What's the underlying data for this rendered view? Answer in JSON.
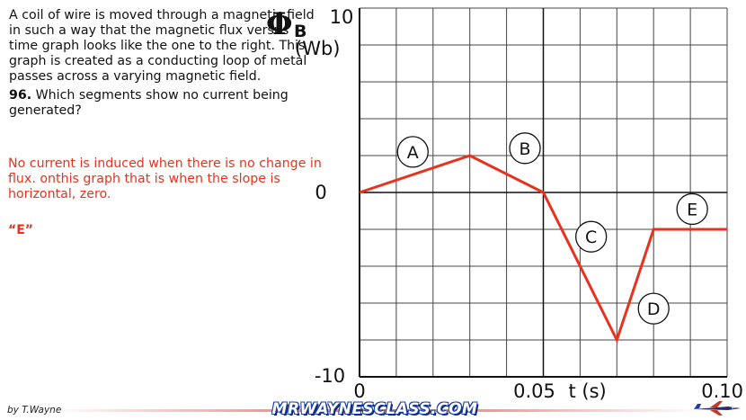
{
  "problem": {
    "description": "A coil of wire is moved through a magnetic field in such a way that the magnetic flux versus time graph looks like the one to the right. This graph is created as a conducting loop of metal passes across a varying magnetic field.",
    "question_number": "96.",
    "question": " Which segments show no current being generated?"
  },
  "answer": {
    "explanation": "No current is induced when there is no change in flux. onthis graph that is when the slope is horizontal, zero.",
    "key": "“E”"
  },
  "footer": {
    "credit": "by T.Wayne",
    "brand": "MRWAYNESCLASS.COM",
    "brand_colors": {
      "text": "#ffffff",
      "outline": "#1b3fa8"
    },
    "jet_icon": "jet-icon"
  },
  "chart_data": {
    "type": "line",
    "ylabel_symbol": "Φ",
    "ylabel_subscript": "B",
    "ylabel_unit": "(Wb)",
    "xlabel": "t (s)",
    "xlim": [
      0,
      0.1
    ],
    "ylim": [
      -10,
      10
    ],
    "x_tick_labels": [
      {
        "value": 0,
        "label": "0"
      },
      {
        "value": 0.05,
        "label": "0.05"
      },
      {
        "value": 0.1,
        "label": "0.10"
      }
    ],
    "y_tick_labels": [
      {
        "value": 10,
        "label": "10"
      },
      {
        "value": 0,
        "label": "0"
      },
      {
        "value": -10,
        "label": "-10"
      }
    ],
    "grid": true,
    "grid_x_step": 0.01,
    "grid_y_step": 2,
    "line_color": "#e8321c",
    "series": [
      {
        "x": [
          0,
          0.03,
          0.05,
          0.07,
          0.08,
          0.1
        ],
        "y": [
          0,
          2,
          0,
          -8,
          -2,
          -2
        ]
      }
    ],
    "segment_labels": [
      {
        "label": "A",
        "x": 0.0145,
        "y": 2.2
      },
      {
        "label": "B",
        "x": 0.045,
        "y": 2.4
      },
      {
        "label": "C",
        "x": 0.063,
        "y": -2.4
      },
      {
        "label": "D",
        "x": 0.08,
        "y": -6.3
      },
      {
        "label": "E",
        "x": 0.0905,
        "y": -0.9
      }
    ]
  }
}
